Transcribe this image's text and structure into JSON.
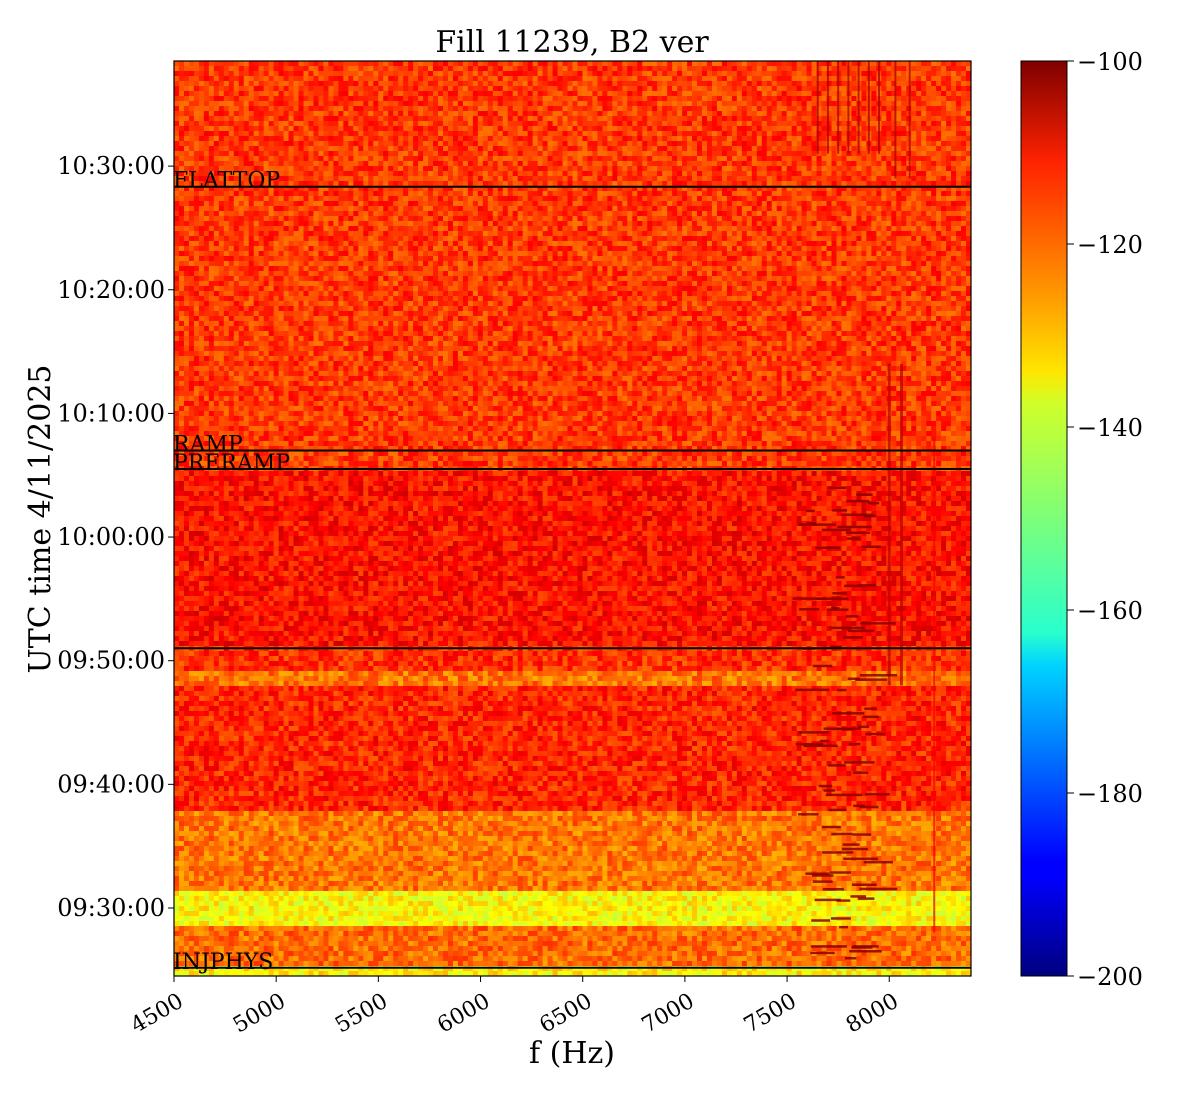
{
  "chart_data": {
    "type": "heatmap",
    "title": "Fill 11239, B2 ver",
    "xlabel": "f (Hz)",
    "ylabel": "UTC time 4/11/2025",
    "xlim": [
      4500,
      8400
    ],
    "ylim_time": [
      "09:24:30",
      "10:38:30"
    ],
    "x_ticks": [
      4500,
      5000,
      5500,
      6000,
      6500,
      7000,
      7500,
      8000
    ],
    "x_tick_labels": [
      "4500",
      "5000",
      "5500",
      "6000",
      "6500",
      "7000",
      "7500",
      "8000"
    ],
    "y_ticks": [
      "09:30:00",
      "09:40:00",
      "09:50:00",
      "10:00:00",
      "10:10:00",
      "10:20:00",
      "10:30:00"
    ],
    "colorbar": {
      "range": [
        -200,
        -100
      ],
      "colormap": "jet",
      "ticks": [
        -100,
        -120,
        -140,
        -160,
        -180,
        -200
      ],
      "tick_labels": [
        "−100",
        "−120",
        "−140",
        "−160",
        "−180",
        "−200"
      ]
    },
    "events": [
      {
        "label": "FLATTOP",
        "time": "10:28:20"
      },
      {
        "label": "RAMP",
        "time": "10:07:00"
      },
      {
        "label": "PRERAMP",
        "time": "10:05:30"
      },
      {
        "label": "",
        "time": "09:51:00"
      },
      {
        "label": "INJPHYS",
        "time": "09:25:10"
      }
    ],
    "background_levels": [
      {
        "from": "10:05:30",
        "to": "10:38:30",
        "level": -118
      },
      {
        "from": "09:51:00",
        "to": "10:05:30",
        "level": -114
      },
      {
        "from": "09:49:00",
        "to": "09:51:00",
        "level": -117
      },
      {
        "from": "09:48:00",
        "to": "09:49:00",
        "level": -124
      },
      {
        "from": "09:38:00",
        "to": "09:48:00",
        "level": -116
      },
      {
        "from": "09:31:30",
        "to": "09:38:00",
        "level": -124
      },
      {
        "from": "09:28:30",
        "to": "09:31:30",
        "level": -137
      },
      {
        "from": "09:25:10",
        "to": "09:28:30",
        "level": -123
      },
      {
        "from": "09:24:30",
        "to": "09:25:10",
        "level": -136
      }
    ]
  }
}
